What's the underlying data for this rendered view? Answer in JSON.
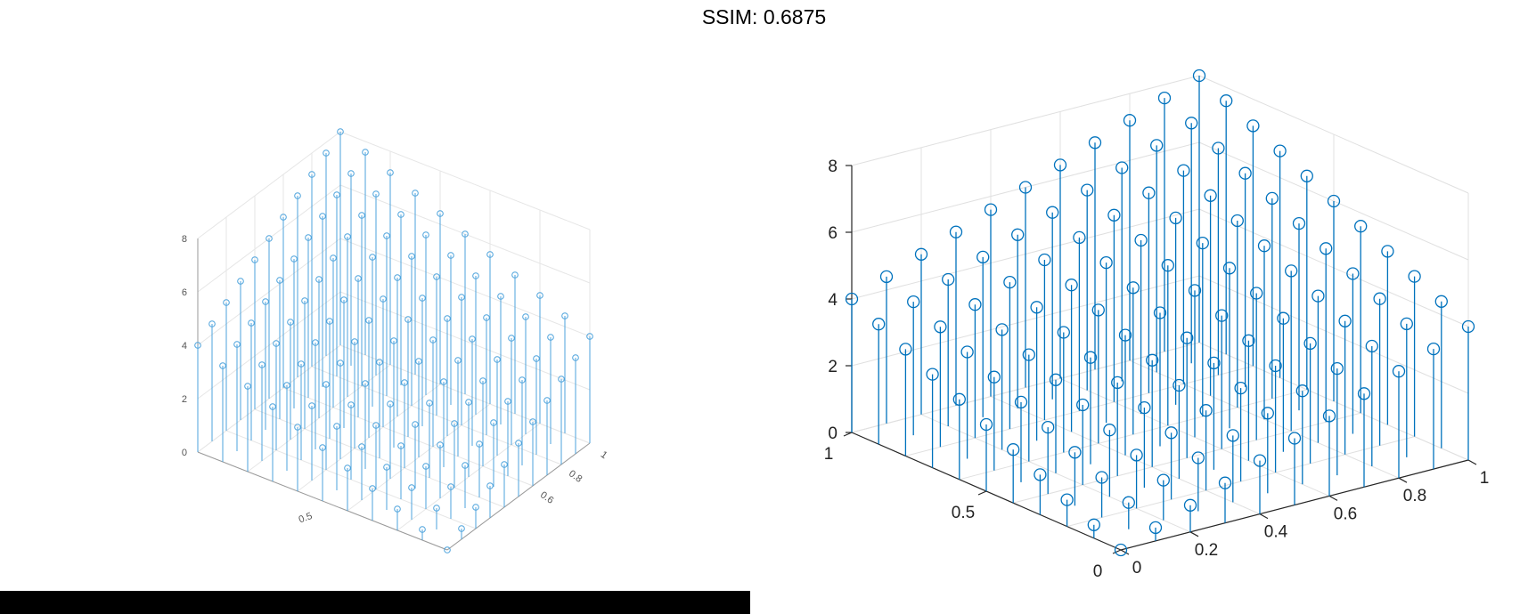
{
  "header": {
    "title": "SSIM: 0.6875"
  },
  "colors": {
    "stem": "#0072BD",
    "stem_light": "#4da3dc",
    "grid": "#e0e0e0",
    "axis": "#262626",
    "background": "#ffffff",
    "bar": "#000000"
  },
  "chart_data": [
    {
      "type": "stem3",
      "panel": "left",
      "title": "",
      "xlabel": "",
      "ylabel": "",
      "zlabel": "",
      "xlim": [
        0,
        1
      ],
      "ylim": [
        0,
        1
      ],
      "zlim": [
        0,
        8
      ],
      "grid": true,
      "x_ticks": [
        "0.6",
        "0.8",
        "1"
      ],
      "y_ticks": [
        "0.5"
      ],
      "z_ticks": [
        "0",
        "2",
        "4",
        "6",
        "8"
      ],
      "x": [
        0,
        0.1,
        0.2,
        0.3,
        0.4,
        0.5,
        0.6,
        0.7,
        0.8,
        0.9,
        1.0
      ],
      "y": [
        0,
        0.1,
        0.2,
        0.3,
        0.4,
        0.5,
        0.6,
        0.7,
        0.8,
        0.9,
        1.0
      ],
      "z_formula": "z = 4*x + 4*y"
    },
    {
      "type": "stem3",
      "panel": "right",
      "title": "",
      "xlabel": "",
      "ylabel": "",
      "zlabel": "",
      "xlim": [
        0,
        1
      ],
      "ylim": [
        0,
        1
      ],
      "zlim": [
        0,
        8
      ],
      "grid": true,
      "x_ticks": [
        "0",
        "0.2",
        "0.4",
        "0.6",
        "0.8",
        "1"
      ],
      "y_ticks": [
        "0",
        "0.5",
        "1"
      ],
      "z_ticks": [
        "0",
        "2",
        "4",
        "6",
        "8"
      ],
      "x": [
        0,
        0.1,
        0.2,
        0.3,
        0.4,
        0.5,
        0.6,
        0.7,
        0.8,
        0.9,
        1.0
      ],
      "y": [
        0,
        0.1,
        0.2,
        0.3,
        0.4,
        0.5,
        0.6,
        0.7,
        0.8,
        0.9,
        1.0
      ],
      "z_formula": "z = 4*x + 4*y"
    }
  ]
}
